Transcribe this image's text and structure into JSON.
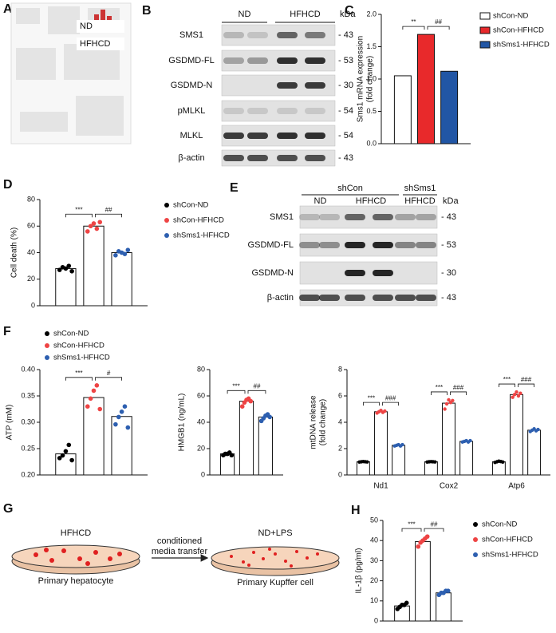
{
  "panel_labels": [
    "A",
    "B",
    "C",
    "D",
    "E",
    "F",
    "G",
    "H"
  ],
  "panel_a_legend": [
    "ND",
    "HFHCD"
  ],
  "blots": [
    {
      "columns": [
        "ND",
        "HFHCD"
      ],
      "kda_header": "kDa",
      "rows": [
        {
          "label": "SMS1",
          "kda": "- 43"
        },
        {
          "label": "GSDMD-FL",
          "kda": "- 53"
        },
        {
          "label": "GSDMD-N",
          "kda": "- 30"
        },
        {
          "label": "pMLKL",
          "kda": "- 54"
        },
        {
          "label": "MLKL",
          "kda": "- 54"
        },
        {
          "label": "β-actin",
          "kda": "- 43"
        }
      ]
    },
    {
      "groups": [
        "shCon",
        "shSms1"
      ],
      "columns": [
        "ND",
        "HFHCD",
        "HFHCD"
      ],
      "kda_header": "kDa",
      "rows": [
        {
          "label": "SMS1",
          "kda": "- 43"
        },
        {
          "label": "GSDMD-FL",
          "kda": "- 53"
        },
        {
          "label": "GSDMD-N",
          "kda": "- 30"
        },
        {
          "label": "β-actin",
          "kda": "- 43"
        }
      ]
    }
  ],
  "diagram": {
    "source": {
      "label": "HFHCD",
      "caption": "Primary hepatocyte"
    },
    "arrow": [
      "conditioned",
      "media transfer"
    ],
    "target": {
      "label": "ND+LPS",
      "caption": "Primary Kupffer cell"
    }
  },
  "chart_data": [
    {
      "type": "bar",
      "ylabel": [
        "Sms1 mRNA expression",
        "(fold change)"
      ],
      "ylim": [
        0,
        2
      ],
      "yticks": [
        {
          "value": 0,
          "label": "0.0"
        },
        0.5,
        {
          "value": 1,
          "label": "1.0"
        },
        1.5,
        {
          "value": 2,
          "label": "2.0"
        }
      ],
      "series": [
        {
          "name": "shCon-ND",
          "color": "#ffffff",
          "values": [
            1.05
          ]
        },
        {
          "name": "shCon-HFHCD",
          "color": "#e8292b",
          "values": [
            1.69
          ]
        },
        {
          "name": "shSms1-HFHCD",
          "color": "#2156a5",
          "values": [
            1.12
          ]
        }
      ],
      "significance": [
        [
          "**",
          "##"
        ]
      ]
    },
    {
      "type": "bar",
      "ylabel": "Cell death (%)",
      "ylim": [
        0,
        80
      ],
      "yticks": [
        0,
        20,
        40,
        60,
        80
      ],
      "series": [
        {
          "name": "shCon-ND",
          "color": "#000000",
          "values": [
            28
          ],
          "points": [
            [
              27,
              29,
              28,
              30,
              26
            ]
          ]
        },
        {
          "name": "shCon-HFHCD",
          "color": "#ee4444",
          "values": [
            60
          ],
          "points": [
            [
              56,
              60,
              62,
              58,
              63
            ]
          ]
        },
        {
          "name": "shSms1-HFHCD",
          "color": "#2d5fb0",
          "values": [
            40
          ],
          "points": [
            [
              38,
              41,
              40,
              39,
              42
            ]
          ]
        }
      ],
      "significance": [
        [
          "***",
          "##"
        ]
      ]
    },
    {
      "type": "bar",
      "ylabel": "ATP (mM)",
      "ylim": [
        0.2,
        0.4
      ],
      "yticks": [
        {
          "value": 0.2,
          "label": "0.20"
        },
        0.25,
        {
          "value": 0.3,
          "label": "0.30"
        },
        0.35,
        {
          "value": 0.4,
          "label": "0.40"
        }
      ],
      "series": [
        {
          "name": "shCon-ND",
          "color": "#000000",
          "values": [
            0.24
          ],
          "points": [
            [
              0.232,
              0.237,
              0.245,
              0.257,
              0.228
            ]
          ]
        },
        {
          "name": "shCon-HFHCD",
          "color": "#ee4444",
          "values": [
            0.347
          ],
          "points": [
            [
              0.33,
              0.345,
              0.36,
              0.37,
              0.325
            ]
          ]
        },
        {
          "name": "shSms1-HFHCD",
          "color": "#2d5fb0",
          "values": [
            0.311
          ],
          "points": [
            [
              0.296,
              0.31,
              0.32,
              0.33,
              0.29
            ]
          ]
        }
      ],
      "significance": [
        [
          "***",
          "#"
        ]
      ]
    },
    {
      "type": "bar",
      "ylabel": "HMGB1 (ng/mL)",
      "ylim": [
        0,
        80
      ],
      "yticks": [
        0,
        20,
        40,
        60,
        80
      ],
      "series": [
        {
          "color": "#000000",
          "values": [
            16
          ],
          "points": [
            [
              15,
              16,
              16,
              17,
              15
            ]
          ]
        },
        {
          "color": "#ee4444",
          "values": [
            56
          ],
          "points": [
            [
              52,
              55,
              57,
              58,
              56
            ]
          ]
        },
        {
          "color": "#2d5fb0",
          "values": [
            44
          ],
          "points": [
            [
              41,
              43,
              45,
              46,
              44
            ]
          ]
        }
      ],
      "significance": [
        [
          "***",
          "##"
        ]
      ]
    },
    {
      "type": "bar",
      "ylabel": [
        "mtDNA release",
        "(fold change)"
      ],
      "ylim": [
        0,
        8
      ],
      "yticks": [
        0,
        2,
        4,
        6,
        8
      ],
      "categories": [
        "Nd1",
        "Cox2",
        "Atp6"
      ],
      "series": [
        {
          "color": "#000000",
          "values": [
            1,
            1,
            1
          ],
          "points": [
            [
              0.98,
              1,
              1.02,
              1,
              0.99
            ],
            [
              0.98,
              1,
              1.01,
              1,
              0.99
            ],
            [
              0.95,
              1,
              1.05,
              1.02,
              0.98
            ]
          ]
        },
        {
          "color": "#ee4444",
          "values": [
            4.8,
            5.45,
            6.1
          ],
          "points": [
            [
              4.7,
              4.8,
              4.9,
              4.75,
              4.85
            ],
            [
              5.0,
              5.4,
              5.7,
              5.5,
              5.65
            ],
            [
              5.9,
              6.1,
              6.3,
              6.0,
              6.2
            ]
          ]
        },
        {
          "color": "#2d5fb0",
          "values": [
            2.25,
            2.55,
            3.4
          ],
          "points": [
            [
              2.2,
              2.25,
              2.3,
              2.2,
              2.3
            ],
            [
              2.5,
              2.55,
              2.6,
              2.5,
              2.6
            ],
            [
              3.3,
              3.4,
              3.5,
              3.35,
              3.45
            ]
          ]
        }
      ],
      "significance": [
        [
          "***",
          "###"
        ],
        [
          "***",
          "###"
        ],
        [
          "***",
          "###"
        ]
      ]
    },
    {
      "type": "bar",
      "ylabel": "IL-1β (pg/ml)",
      "ylim": [
        0,
        50
      ],
      "yticks": [
        0,
        10,
        20,
        30,
        40,
        50
      ],
      "series": [
        {
          "name": "shCon-ND",
          "color": "#000000",
          "values": [
            7.5
          ],
          "points": [
            [
              6,
              7,
              8,
              8,
              9
            ]
          ]
        },
        {
          "name": "shCon-HFHCD",
          "color": "#ee4444",
          "values": [
            39.5
          ],
          "points": [
            [
              37,
              39,
              40,
              41,
              42
            ]
          ]
        },
        {
          "name": "shSms1-HFHCD",
          "color": "#2d5fb0",
          "values": [
            14
          ],
          "points": [
            [
              13,
              14,
              14,
              15,
              15
            ]
          ]
        }
      ],
      "significance": [
        [
          "***",
          "##"
        ]
      ]
    }
  ]
}
